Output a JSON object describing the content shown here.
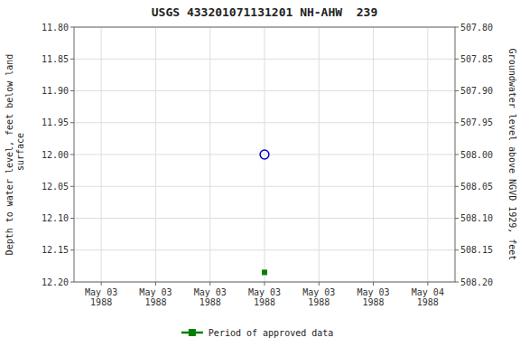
{
  "chart_data": {
    "type": "scatter",
    "title": "USGS 433201071131201 NH-AHW  239",
    "y_label": "Depth to water level, feet below land\n surface",
    "y2_label": "Groundwater level above NGVD 1929, feet",
    "categories": [
      "May 03\n1988",
      "May 03\n1988",
      "May 03\n1988",
      "May 03\n1988",
      "May 03\n1988",
      "May 03\n1988",
      "May 04\n1988"
    ],
    "series": [
      {
        "values": [
          null,
          null,
          null,
          12.0,
          null,
          null,
          null
        ],
        "color": "#0000cc",
        "marker": "circle-open",
        "line_style": "none"
      },
      {
        "name": "Period of approved data",
        "values": [
          null,
          null,
          null,
          12.185,
          null,
          null,
          null
        ],
        "color": "#008000",
        "marker": "square",
        "line_style": "none"
      }
    ],
    "ylim": [
      12.2,
      11.8
    ],
    "yticks": [
      {
        "value": 11.8,
        "label": "11.80"
      },
      11.85,
      {
        "value": 11.9,
        "label": "11.90"
      },
      11.95,
      {
        "value": 12.0,
        "label": "12.00"
      },
      12.05,
      {
        "value": 12.1,
        "label": "12.10"
      },
      12.15,
      {
        "value": 12.2,
        "label": "12.20"
      }
    ],
    "y2lim": [
      508.2,
      507.8
    ],
    "y2ticks": [
      {
        "value": 507.8,
        "label": "507.80"
      },
      507.85,
      {
        "value": 507.9,
        "label": "507.90"
      },
      507.95,
      {
        "value": 508.0,
        "label": "508.00"
      },
      508.05,
      {
        "value": 508.1,
        "label": "508.10"
      },
      508.15,
      {
        "value": 508.2,
        "label": "508.20"
      }
    ],
    "grid": true,
    "legend": "bottom"
  }
}
